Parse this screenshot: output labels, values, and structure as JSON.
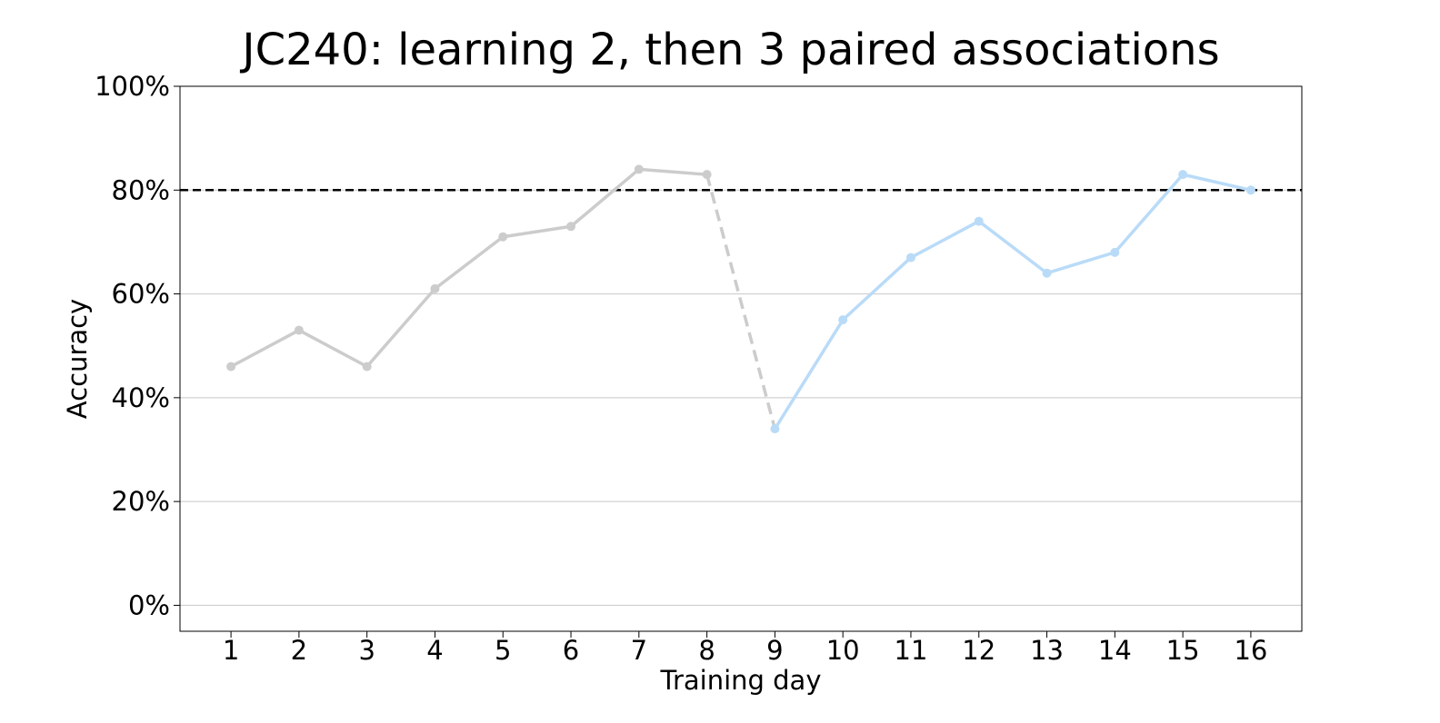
{
  "chart_data": {
    "type": "line",
    "title": "JC240: learning 2, then 3 paired associations",
    "xlabel": "Training day",
    "ylabel": "Accuracy",
    "x": [
      1,
      2,
      3,
      4,
      5,
      6,
      7,
      8,
      9,
      10,
      11,
      12,
      13,
      14,
      15,
      16
    ],
    "x_tick_labels": [
      "1",
      "2",
      "3",
      "4",
      "5",
      "6",
      "7",
      "8",
      "9",
      "10",
      "11",
      "12",
      "13",
      "14",
      "15",
      "16"
    ],
    "xlim": [
      0.25,
      16.75
    ],
    "ylim": [
      -0.05,
      1.0
    ],
    "y_ticks": [
      0,
      0.2,
      0.4,
      0.6,
      0.8,
      1.0
    ],
    "y_tick_labels": [
      "0%",
      "20%",
      "40%",
      "60%",
      "80%",
      "100%"
    ],
    "grid": "horizontal",
    "legend": "none",
    "series": [
      {
        "x": [
          1,
          2,
          3,
          4,
          5,
          6,
          7,
          8
        ],
        "values": [
          0.46,
          0.53,
          0.46,
          0.61,
          0.71,
          0.73,
          0.84,
          0.83
        ],
        "color": "#cccccc",
        "style": "solid"
      },
      {
        "x": [
          8,
          9
        ],
        "values": [
          0.83,
          0.34
        ],
        "color": "#cccccc",
        "style": "dashed"
      },
      {
        "x": [
          9,
          10,
          11,
          12,
          13,
          14,
          15,
          16
        ],
        "values": [
          0.34,
          0.55,
          0.67,
          0.74,
          0.64,
          0.68,
          0.83,
          0.8
        ],
        "color": "#b9dbf8",
        "style": "solid"
      }
    ],
    "reference_lines": [
      {
        "y": 0.8,
        "color": "#000000",
        "style": "dashed"
      }
    ]
  }
}
